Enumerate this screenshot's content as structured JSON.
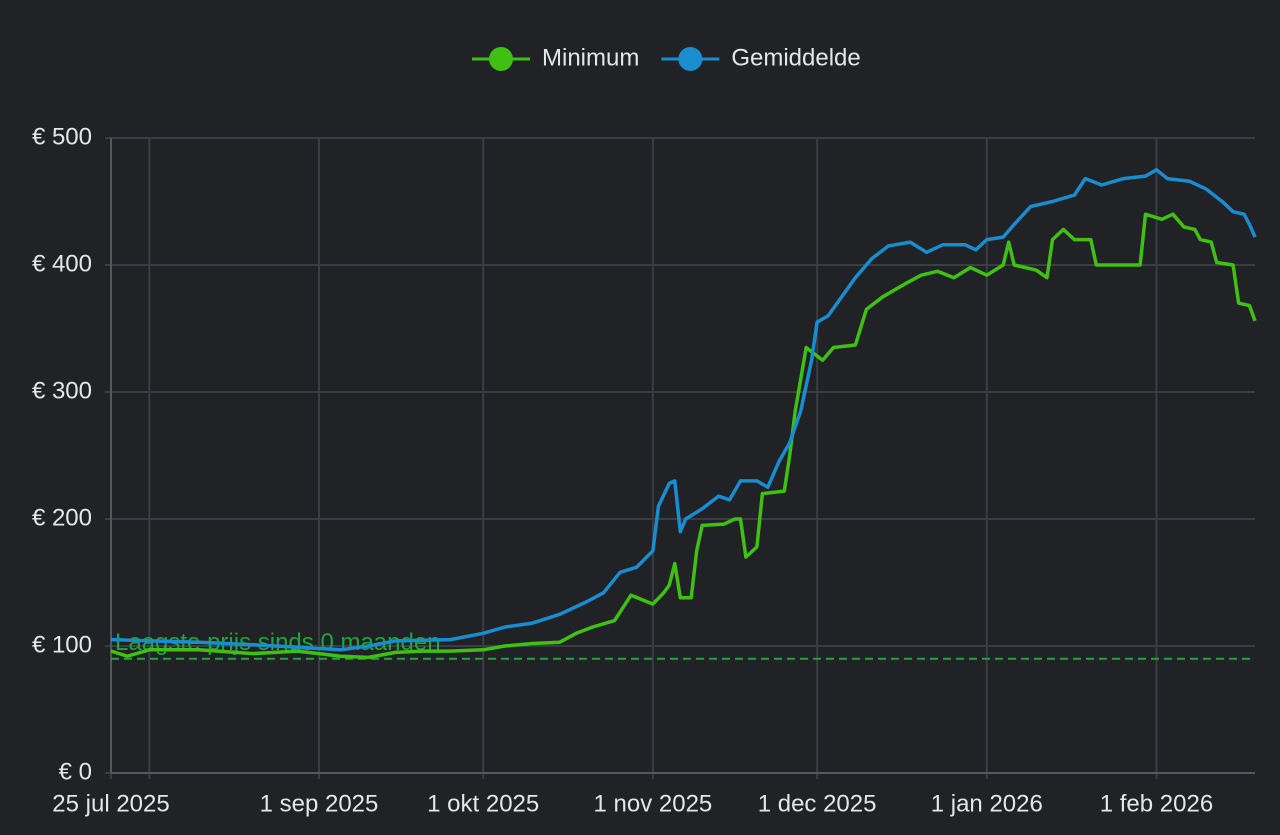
{
  "chart_data": {
    "type": "line",
    "series": [
      {
        "name": "Minimum",
        "color": "#3fc012",
        "x": [
          "2025-07-25",
          "2025-07-28",
          "2025-08-01",
          "2025-08-10",
          "2025-08-20",
          "2025-08-28",
          "2025-09-01",
          "2025-09-05",
          "2025-09-10",
          "2025-09-15",
          "2025-09-20",
          "2025-09-25",
          "2025-10-01",
          "2025-10-05",
          "2025-10-10",
          "2025-10-15",
          "2025-10-18",
          "2025-10-21",
          "2025-10-25",
          "2025-10-28",
          "2025-11-01",
          "2025-11-03",
          "2025-11-04",
          "2025-11-05",
          "2025-11-06",
          "2025-11-08",
          "2025-11-09",
          "2025-11-10",
          "2025-11-14",
          "2025-11-16",
          "2025-11-17",
          "2025-11-18",
          "2025-11-20",
          "2025-11-21",
          "2025-11-25",
          "2025-11-26",
          "2025-11-27",
          "2025-11-29",
          "2025-12-02",
          "2025-12-04",
          "2025-12-08",
          "2025-12-10",
          "2025-12-13",
          "2025-12-17",
          "2025-12-20",
          "2025-12-23",
          "2025-12-26",
          "2025-12-29",
          "2026-01-01",
          "2026-01-04",
          "2026-01-05",
          "2026-01-06",
          "2026-01-10",
          "2026-01-12",
          "2026-01-13",
          "2026-01-15",
          "2026-01-17",
          "2026-01-20",
          "2026-01-21",
          "2026-01-29",
          "2026-01-30",
          "2026-02-02",
          "2026-02-04",
          "2026-02-06",
          "2026-02-08",
          "2026-02-09",
          "2026-02-11",
          "2026-02-12",
          "2026-02-15",
          "2026-02-16",
          "2026-02-18",
          "2026-02-19"
        ],
        "values": [
          96,
          92,
          97,
          97,
          94,
          96,
          94,
          92,
          91,
          95,
          96,
          96,
          97,
          100,
          102,
          103,
          110,
          115,
          120,
          140,
          133,
          142,
          148,
          165,
          138,
          138,
          175,
          195,
          196,
          200,
          200,
          170,
          178,
          220,
          222,
          250,
          285,
          335,
          325,
          335,
          337,
          365,
          375,
          385,
          392,
          395,
          390,
          398,
          392,
          400,
          418,
          400,
          396,
          390,
          420,
          428,
          420,
          420,
          400,
          400,
          440,
          436,
          440,
          430,
          428,
          420,
          418,
          402,
          400,
          370,
          368,
          356
        ]
      },
      {
        "name": "Gemiddelde",
        "color": "#1a8dd0",
        "x": [
          "2025-07-25",
          "2025-08-10",
          "2025-08-20",
          "2025-09-01",
          "2025-09-05",
          "2025-09-10",
          "2025-09-15",
          "2025-09-25",
          "2025-10-01",
          "2025-10-05",
          "2025-10-10",
          "2025-10-15",
          "2025-10-20",
          "2025-10-23",
          "2025-10-26",
          "2025-10-29",
          "2025-11-01",
          "2025-11-02",
          "2025-11-04",
          "2025-11-05",
          "2025-11-06",
          "2025-11-07",
          "2025-11-10",
          "2025-11-13",
          "2025-11-15",
          "2025-11-17",
          "2025-11-20",
          "2025-11-22",
          "2025-11-24",
          "2025-11-26",
          "2025-11-28",
          "2025-11-30",
          "2025-12-01",
          "2025-12-03",
          "2025-12-05",
          "2025-12-08",
          "2025-12-11",
          "2025-12-14",
          "2025-12-18",
          "2025-12-21",
          "2025-12-24",
          "2025-12-28",
          "2025-12-30",
          "2026-01-01",
          "2026-01-04",
          "2026-01-06",
          "2026-01-09",
          "2026-01-13",
          "2026-01-17",
          "2026-01-19",
          "2026-01-22",
          "2026-01-26",
          "2026-01-30",
          "2026-02-01",
          "2026-02-03",
          "2026-02-07",
          "2026-02-10",
          "2026-02-13",
          "2026-02-15",
          "2026-02-17",
          "2026-02-18",
          "2026-02-19"
        ],
        "values": [
          105,
          103,
          101,
          98,
          97,
          100,
          104,
          105,
          110,
          115,
          118,
          125,
          135,
          142,
          158,
          162,
          175,
          210,
          228,
          230,
          190,
          200,
          208,
          218,
          215,
          230,
          230,
          225,
          245,
          260,
          285,
          325,
          355,
          360,
          372,
          390,
          405,
          415,
          418,
          410,
          416,
          416,
          412,
          420,
          422,
          432,
          446,
          450,
          455,
          468,
          463,
          468,
          470,
          475,
          468,
          466,
          460,
          450,
          442,
          440,
          432,
          422
        ]
      }
    ],
    "annotations": [
      {
        "text": "Laagste prijs sinds 0 maanden",
        "value": 90,
        "color": "#22a43a"
      }
    ],
    "xlim": [
      "2025-07-25",
      "2026-02-19"
    ],
    "xticks": [
      {
        "value": "2025-07-25",
        "label": "25 jul 2025"
      },
      {
        "value": "2025-08-01",
        "label": null
      },
      {
        "value": "2025-09-01",
        "label": "1 sep 2025"
      },
      {
        "value": "2025-10-01",
        "label": "1 okt 2025"
      },
      {
        "value": "2025-11-01",
        "label": "1 nov 2025"
      },
      {
        "value": "2025-12-01",
        "label": "1 dec 2025"
      },
      {
        "value": "2026-01-01",
        "label": "1 jan 2026"
      },
      {
        "value": "2026-02-01",
        "label": "1 feb 2026"
      }
    ],
    "ylim": [
      0,
      500
    ],
    "yticks": [
      {
        "value": 0,
        "label": "€ 0"
      },
      {
        "value": 100,
        "label": "€ 100"
      },
      {
        "value": 200,
        "label": "€ 200"
      },
      {
        "value": 300,
        "label": "€ 300"
      },
      {
        "value": 400,
        "label": "€ 400"
      },
      {
        "value": 500,
        "label": "€ 500"
      }
    ],
    "grid": true,
    "legend": "top"
  }
}
